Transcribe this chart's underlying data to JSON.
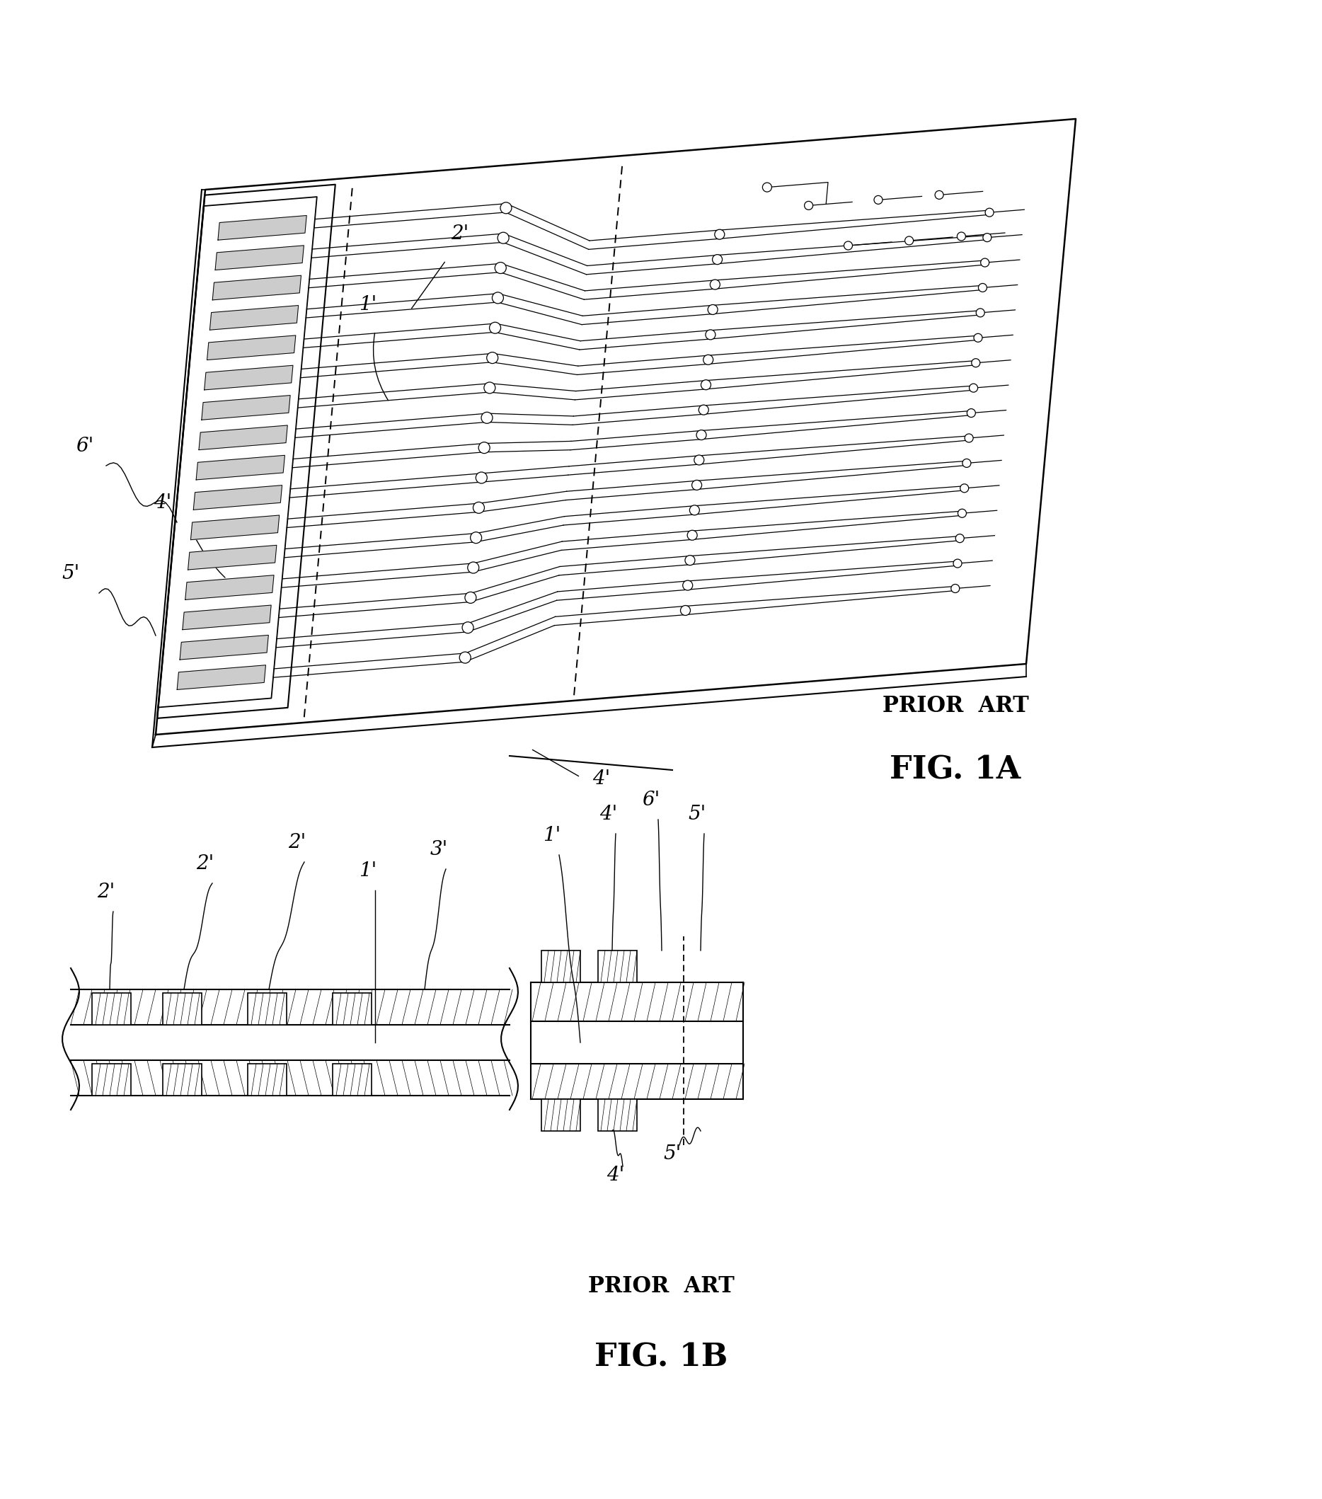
{
  "fig_background": "#ffffff",
  "line_color": "#000000",
  "fig1a_title": "PRIOR  ART",
  "fig1a_label": "FIG. 1A",
  "fig1b_title": "PRIOR  ART",
  "fig1b_label": "FIG. 1B",
  "label_fontsize": 32,
  "prior_art_fontsize": 22,
  "annot_fontsize": 20
}
